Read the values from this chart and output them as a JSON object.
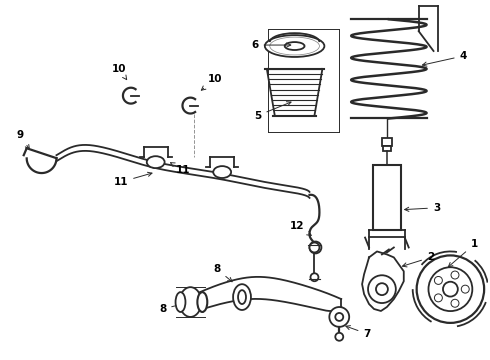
{
  "bg_color": "#ffffff",
  "line_color": "#2a2a2a",
  "fig_width": 4.9,
  "fig_height": 3.6,
  "dpi": 100,
  "label_fontsize": 7.5,
  "arrow_lw": 0.7,
  "parts_lw": 1.3
}
